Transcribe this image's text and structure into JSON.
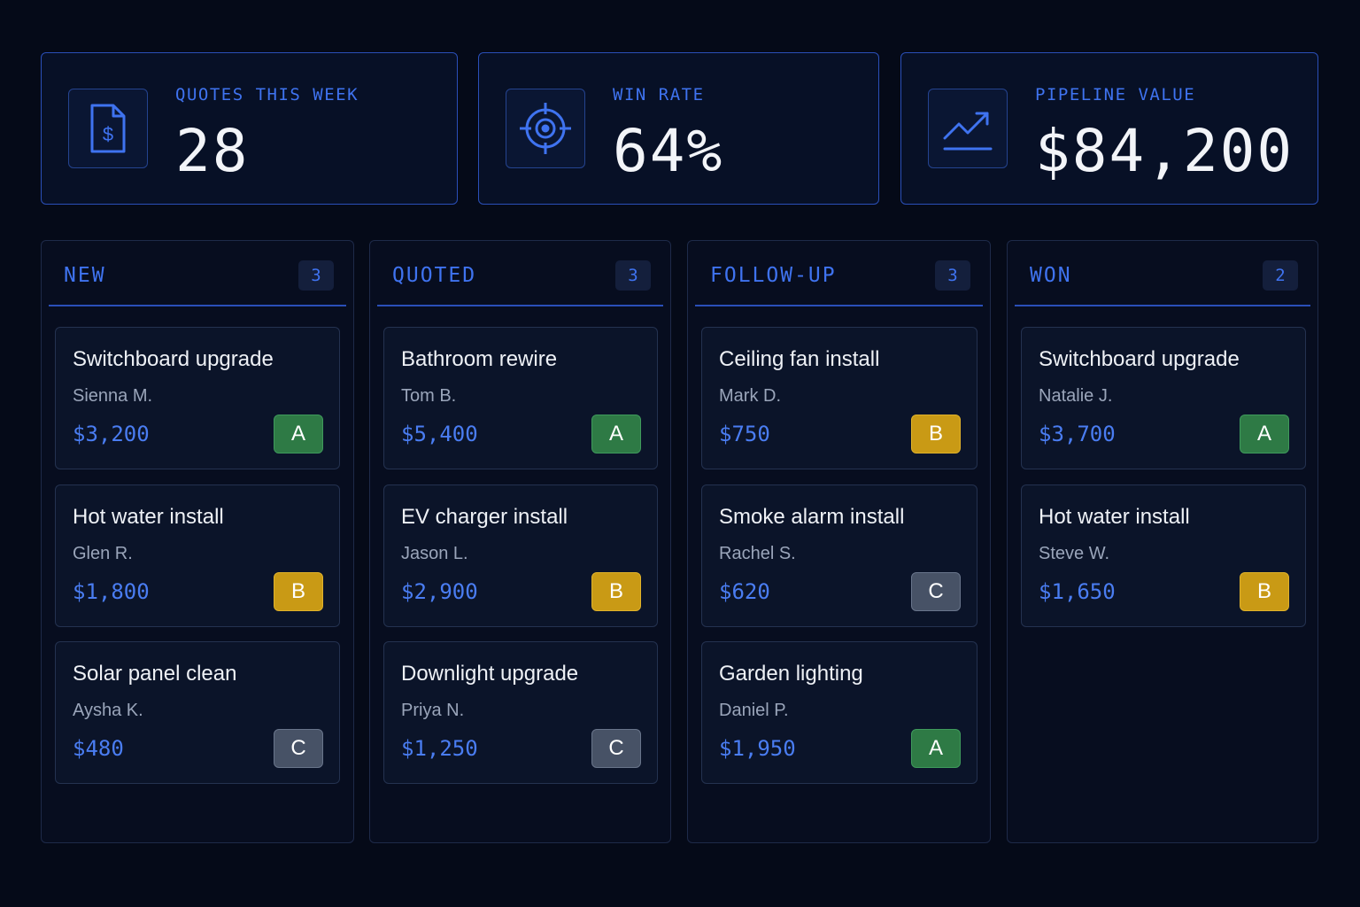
{
  "stats": [
    {
      "label": "QUOTES THIS WEEK",
      "value": "28",
      "icon": "invoice-dollar-icon"
    },
    {
      "label": "WIN RATE",
      "value": "64%",
      "icon": "target-icon"
    },
    {
      "label": "PIPELINE VALUE",
      "value": "$84,200",
      "icon": "trend-up-icon"
    }
  ],
  "columns": [
    {
      "title": "NEW",
      "count": "3",
      "cards": [
        {
          "title": "Switchboard upgrade",
          "client": "Sienna M.",
          "price": "$3,200",
          "grade": "A"
        },
        {
          "title": "Hot water install",
          "client": "Glen R.",
          "price": "$1,800",
          "grade": "B"
        },
        {
          "title": "Solar panel clean",
          "client": "Aysha K.",
          "price": "$480",
          "grade": "C"
        }
      ]
    },
    {
      "title": "QUOTED",
      "count": "3",
      "cards": [
        {
          "title": "Bathroom rewire",
          "client": "Tom B.",
          "price": "$5,400",
          "grade": "A"
        },
        {
          "title": "EV charger install",
          "client": "Jason L.",
          "price": "$2,900",
          "grade": "B"
        },
        {
          "title": "Downlight upgrade",
          "client": "Priya N.",
          "price": "$1,250",
          "grade": "C"
        }
      ]
    },
    {
      "title": "FOLLOW-UP",
      "count": "3",
      "cards": [
        {
          "title": "Ceiling fan install",
          "client": "Mark D.",
          "price": "$750",
          "grade": "B"
        },
        {
          "title": "Smoke alarm install",
          "client": "Rachel S.",
          "price": "$620",
          "grade": "C"
        },
        {
          "title": "Garden lighting",
          "client": "Daniel P.",
          "price": "$1,950",
          "grade": "A"
        }
      ]
    },
    {
      "title": "WON",
      "count": "2",
      "cards": [
        {
          "title": "Switchboard upgrade",
          "client": "Natalie J.",
          "price": "$3,700",
          "grade": "A"
        },
        {
          "title": "Hot water install",
          "client": "Steve W.",
          "price": "$1,650",
          "grade": "B"
        }
      ]
    }
  ],
  "colors": {
    "accent": "#3f73f0",
    "grade_a": "#2e7a45",
    "grade_b": "#c99a15",
    "grade_c": "#475266"
  }
}
